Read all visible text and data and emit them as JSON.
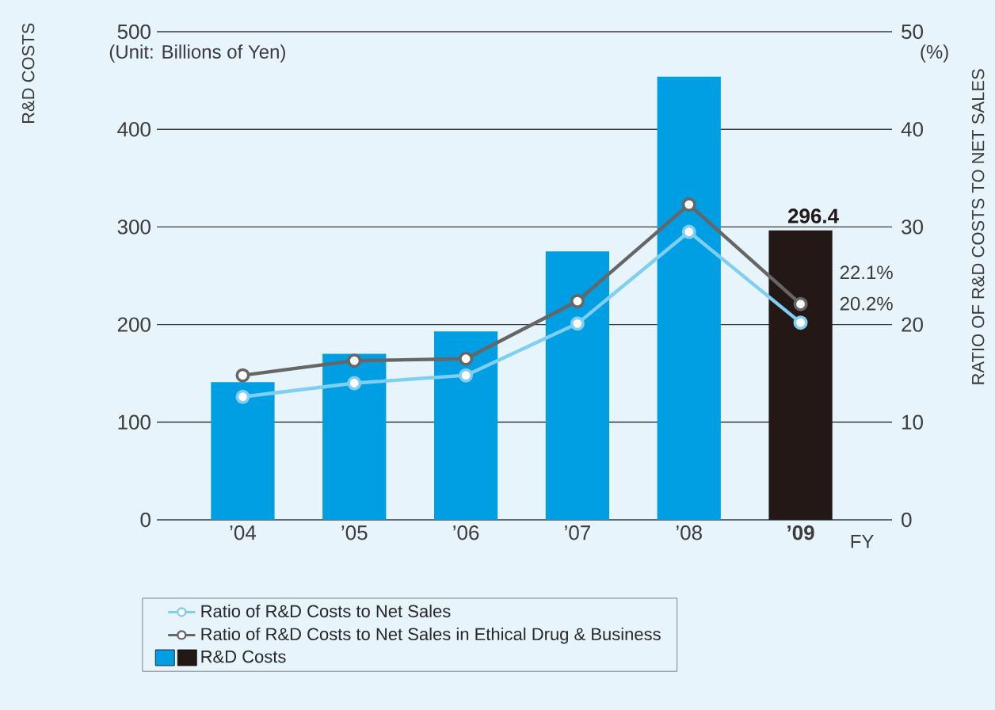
{
  "chart_data": {
    "type": "bar",
    "categories": [
      "’04",
      "’05",
      "’06",
      "’07",
      "’08",
      "’09"
    ],
    "series": [
      {
        "name": "R&D Costs",
        "colors": [
          "#009fe3",
          "#009fe3",
          "#009fe3",
          "#009fe3",
          "#009fe3",
          "#231815"
        ],
        "values": [
          141,
          170,
          193,
          275,
          454,
          296.4
        ],
        "value_labels": [
          null,
          null,
          null,
          null,
          null,
          "296.4"
        ]
      },
      {
        "type": "line",
        "axis": "y2",
        "name": "Ratio of R&D Costs to Net Sales",
        "color": "#7fcef3",
        "values": [
          12.6,
          14.0,
          14.8,
          20.1,
          29.5,
          20.2
        ],
        "value_labels": [
          null,
          null,
          null,
          null,
          null,
          "20.2%"
        ]
      },
      {
        "type": "line",
        "axis": "y2",
        "name": "Ratio of R&D Costs to Net Sales in Ethical Drug & Business",
        "color": "#666666",
        "values": [
          14.8,
          16.3,
          16.5,
          22.4,
          32.3,
          22.1
        ],
        "value_labels": [
          null,
          null,
          null,
          null,
          null,
          "22.1%"
        ]
      }
    ],
    "ylabel": "R&D COSTS",
    "y2label": "RATIO OF R&D COSTS TO NET SALES",
    "ylim": [
      0,
      500
    ],
    "yticks": [
      0,
      100,
      200,
      300,
      400,
      500
    ],
    "y2lim": [
      0,
      50
    ],
    "y2ticks": [
      0,
      10,
      20,
      30,
      40,
      50
    ],
    "annotations": [
      "(Unit: Billions of Yen)",
      "(%)",
      "FY"
    ],
    "grid": "y",
    "legend": "bottom",
    "marker": "circle"
  }
}
